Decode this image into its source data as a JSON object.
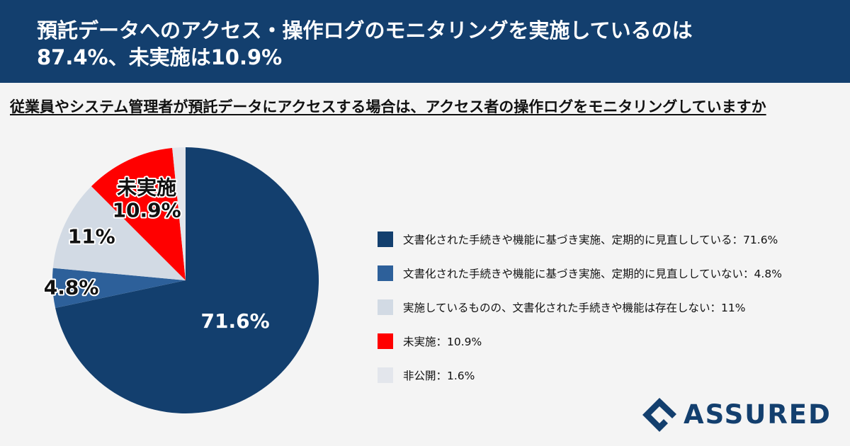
{
  "header": {
    "title_line1": "預託データへのアクセス・操作ログのモニタリングを実施しているのは",
    "title_line2": "87.4%、未実施は10.9%"
  },
  "question": "従業員やシステム管理者が預託データにアクセスする場合は、アクセス者の操作ログをモニタリングしていますか",
  "chart_data": {
    "type": "pie",
    "title": "",
    "slices": [
      {
        "name": "文書化された手続きや機能に基づき実施、定期的に見直ししている",
        "value": 71.6,
        "label": "71.6%",
        "color": "#133f6e"
      },
      {
        "name": "文書化された手続きや機能に基づき実施、定期的に見直ししていない",
        "value": 4.8,
        "label": "4.8%",
        "color": "#2d609a"
      },
      {
        "name": "実施しているものの、文書化された手続きや機能は存在しない",
        "value": 11,
        "label": "11%",
        "color": "#d2dae4"
      },
      {
        "name": "未実施",
        "value": 10.9,
        "label": "未実施\n10.9%",
        "color": "#ff0000"
      },
      {
        "name": "非公開",
        "value": 1.6,
        "label": "",
        "color": "#e3e6ec"
      }
    ],
    "legend": [
      "文書化された手続きや機能に基づき実施、定期的に見直ししている：71.6%",
      "文書化された手続きや機能に基づき実施、定期的に見直ししていない：4.8%",
      "実施しているものの、文書化された手続きや機能は存在しない：11%",
      "未実施：10.9%",
      "非公開：1.6%"
    ],
    "legend_position": "right",
    "start": "top",
    "direction": "clockwise"
  },
  "brand": {
    "name": "ASSURED",
    "logo_icon": "assured-logo-icon",
    "color": "#133f6e"
  }
}
